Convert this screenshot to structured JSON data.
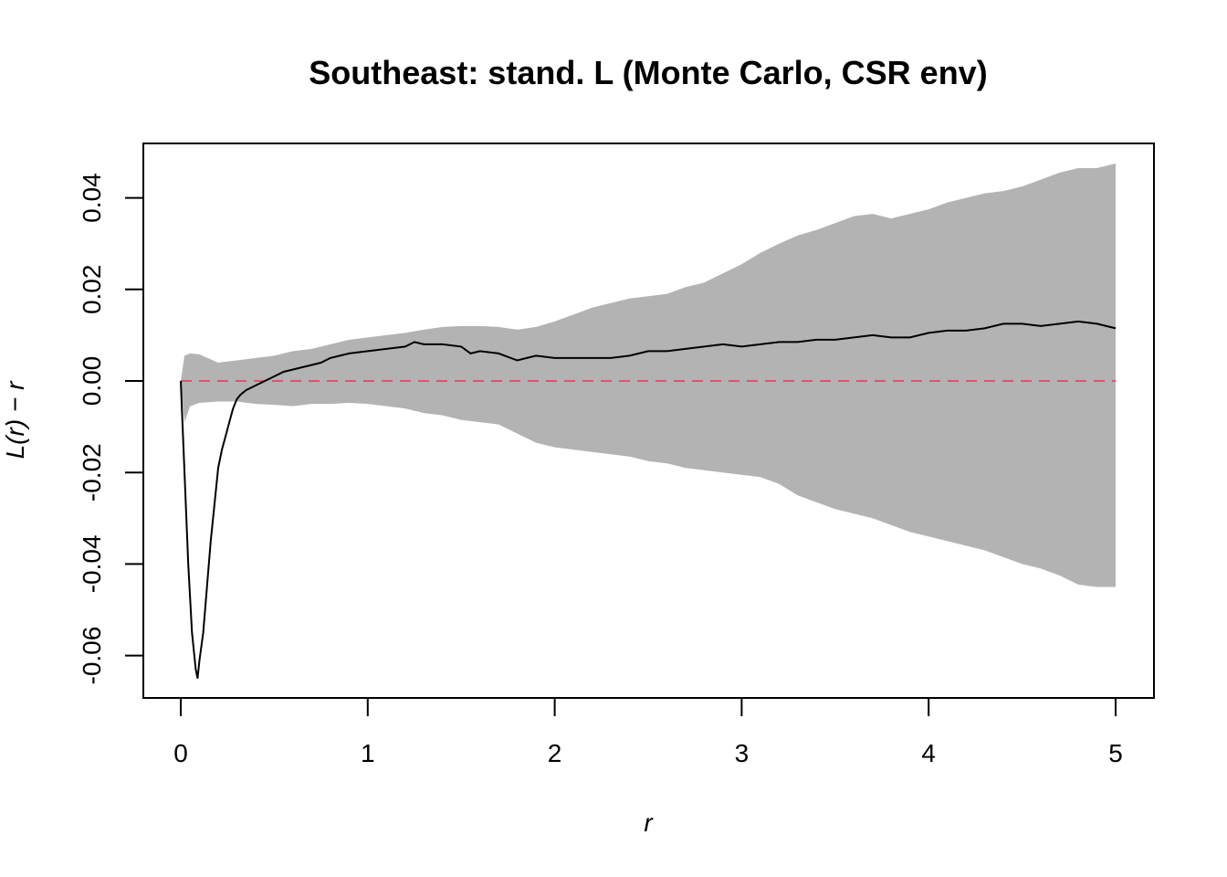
{
  "chart_data": {
    "type": "line",
    "title": "Southeast: stand. L (Monte Carlo, CSR env)",
    "xlabel": "r",
    "ylabel": "L(r) − r",
    "xlim": [
      0,
      5
    ],
    "ylim": [
      -0.065,
      0.048
    ],
    "x_ticks": [
      0,
      1,
      2,
      3,
      4,
      5
    ],
    "x_tick_labels": [
      "0",
      "1",
      "2",
      "3",
      "4",
      "5"
    ],
    "y_ticks": [
      -0.06,
      -0.04,
      -0.02,
      0.0,
      0.02,
      0.04
    ],
    "y_tick_labels": [
      "-0.06",
      "-0.04",
      "-0.02",
      "0.00",
      "0.02",
      "0.04"
    ],
    "grid": false,
    "legend": "none",
    "colors": {
      "envelope": "#b3b3b3",
      "observed": "#000000",
      "reference": "#df536b"
    },
    "envelope": {
      "x": [
        0,
        0.02,
        0.05,
        0.1,
        0.2,
        0.3,
        0.4,
        0.5,
        0.6,
        0.7,
        0.8,
        0.9,
        1.0,
        1.1,
        1.2,
        1.3,
        1.4,
        1.5,
        1.6,
        1.7,
        1.8,
        1.9,
        2.0,
        2.1,
        2.2,
        2.3,
        2.4,
        2.5,
        2.6,
        2.7,
        2.8,
        2.9,
        3.0,
        3.1,
        3.2,
        3.3,
        3.4,
        3.5,
        3.6,
        3.7,
        3.8,
        3.9,
        4.0,
        4.1,
        4.2,
        4.3,
        4.4,
        4.5,
        4.6,
        4.7,
        4.8,
        4.9,
        5.0
      ],
      "upper": [
        0.0,
        0.0055,
        0.006,
        0.0058,
        0.004,
        0.0045,
        0.005,
        0.0055,
        0.0065,
        0.007,
        0.008,
        0.009,
        0.0095,
        0.01,
        0.0105,
        0.0112,
        0.0118,
        0.012,
        0.012,
        0.0118,
        0.0112,
        0.0118,
        0.013,
        0.0145,
        0.016,
        0.017,
        0.018,
        0.0185,
        0.019,
        0.0205,
        0.0215,
        0.0235,
        0.0255,
        0.028,
        0.03,
        0.0318,
        0.033,
        0.0345,
        0.036,
        0.0365,
        0.0355,
        0.0365,
        0.0375,
        0.039,
        0.04,
        0.041,
        0.0415,
        0.0425,
        0.044,
        0.0455,
        0.0465,
        0.0465,
        0.0475
      ],
      "lower": [
        0.0,
        -0.009,
        -0.0055,
        -0.0048,
        -0.0045,
        -0.0045,
        -0.005,
        -0.0052,
        -0.0055,
        -0.005,
        -0.005,
        -0.0048,
        -0.005,
        -0.0055,
        -0.006,
        -0.007,
        -0.0075,
        -0.0085,
        -0.009,
        -0.0095,
        -0.0115,
        -0.0135,
        -0.0145,
        -0.015,
        -0.0155,
        -0.016,
        -0.0165,
        -0.0175,
        -0.018,
        -0.019,
        -0.0195,
        -0.02,
        -0.0205,
        -0.021,
        -0.0225,
        -0.025,
        -0.0265,
        -0.028,
        -0.029,
        -0.03,
        -0.0315,
        -0.033,
        -0.034,
        -0.035,
        -0.036,
        -0.037,
        -0.0385,
        -0.04,
        -0.041,
        -0.0425,
        -0.0445,
        -0.045,
        -0.045
      ]
    },
    "series": [
      {
        "x": [
          0,
          0.02,
          0.04,
          0.06,
          0.08,
          0.09,
          0.1,
          0.12,
          0.14,
          0.16,
          0.18,
          0.2,
          0.22,
          0.24,
          0.26,
          0.28,
          0.3,
          0.32,
          0.35,
          0.4,
          0.45,
          0.5,
          0.55,
          0.6,
          0.65,
          0.7,
          0.75,
          0.8,
          0.85,
          0.9,
          1.0,
          1.1,
          1.2,
          1.25,
          1.3,
          1.4,
          1.5,
          1.55,
          1.6,
          1.7,
          1.8,
          1.85,
          1.9,
          2.0,
          2.1,
          2.2,
          2.3,
          2.4,
          2.5,
          2.6,
          2.7,
          2.8,
          2.9,
          3.0,
          3.1,
          3.2,
          3.3,
          3.4,
          3.5,
          3.6,
          3.7,
          3.8,
          3.9,
          4.0,
          4.1,
          4.2,
          4.3,
          4.4,
          4.5,
          4.6,
          4.7,
          4.8,
          4.9,
          5.0
        ],
        "y": [
          0.0,
          -0.02,
          -0.04,
          -0.055,
          -0.063,
          -0.065,
          -0.061,
          -0.055,
          -0.045,
          -0.035,
          -0.027,
          -0.019,
          -0.015,
          -0.012,
          -0.009,
          -0.006,
          -0.004,
          -0.003,
          -0.002,
          -0.001,
          0.0,
          0.001,
          0.002,
          0.0025,
          0.003,
          0.0035,
          0.004,
          0.005,
          0.0055,
          0.006,
          0.0065,
          0.007,
          0.0075,
          0.0085,
          0.008,
          0.008,
          0.0075,
          0.006,
          0.0065,
          0.006,
          0.0045,
          0.005,
          0.0055,
          0.005,
          0.005,
          0.005,
          0.005,
          0.0055,
          0.0065,
          0.0065,
          0.007,
          0.0075,
          0.008,
          0.0075,
          0.008,
          0.0085,
          0.0085,
          0.009,
          0.009,
          0.0095,
          0.01,
          0.0095,
          0.0095,
          0.0105,
          0.011,
          0.011,
          0.0115,
          0.0125,
          0.0125,
          0.012,
          0.0125,
          0.013,
          0.0125,
          0.0115
        ]
      },
      {
        "x": [
          0,
          5
        ],
        "y": [
          0,
          0
        ]
      }
    ]
  }
}
